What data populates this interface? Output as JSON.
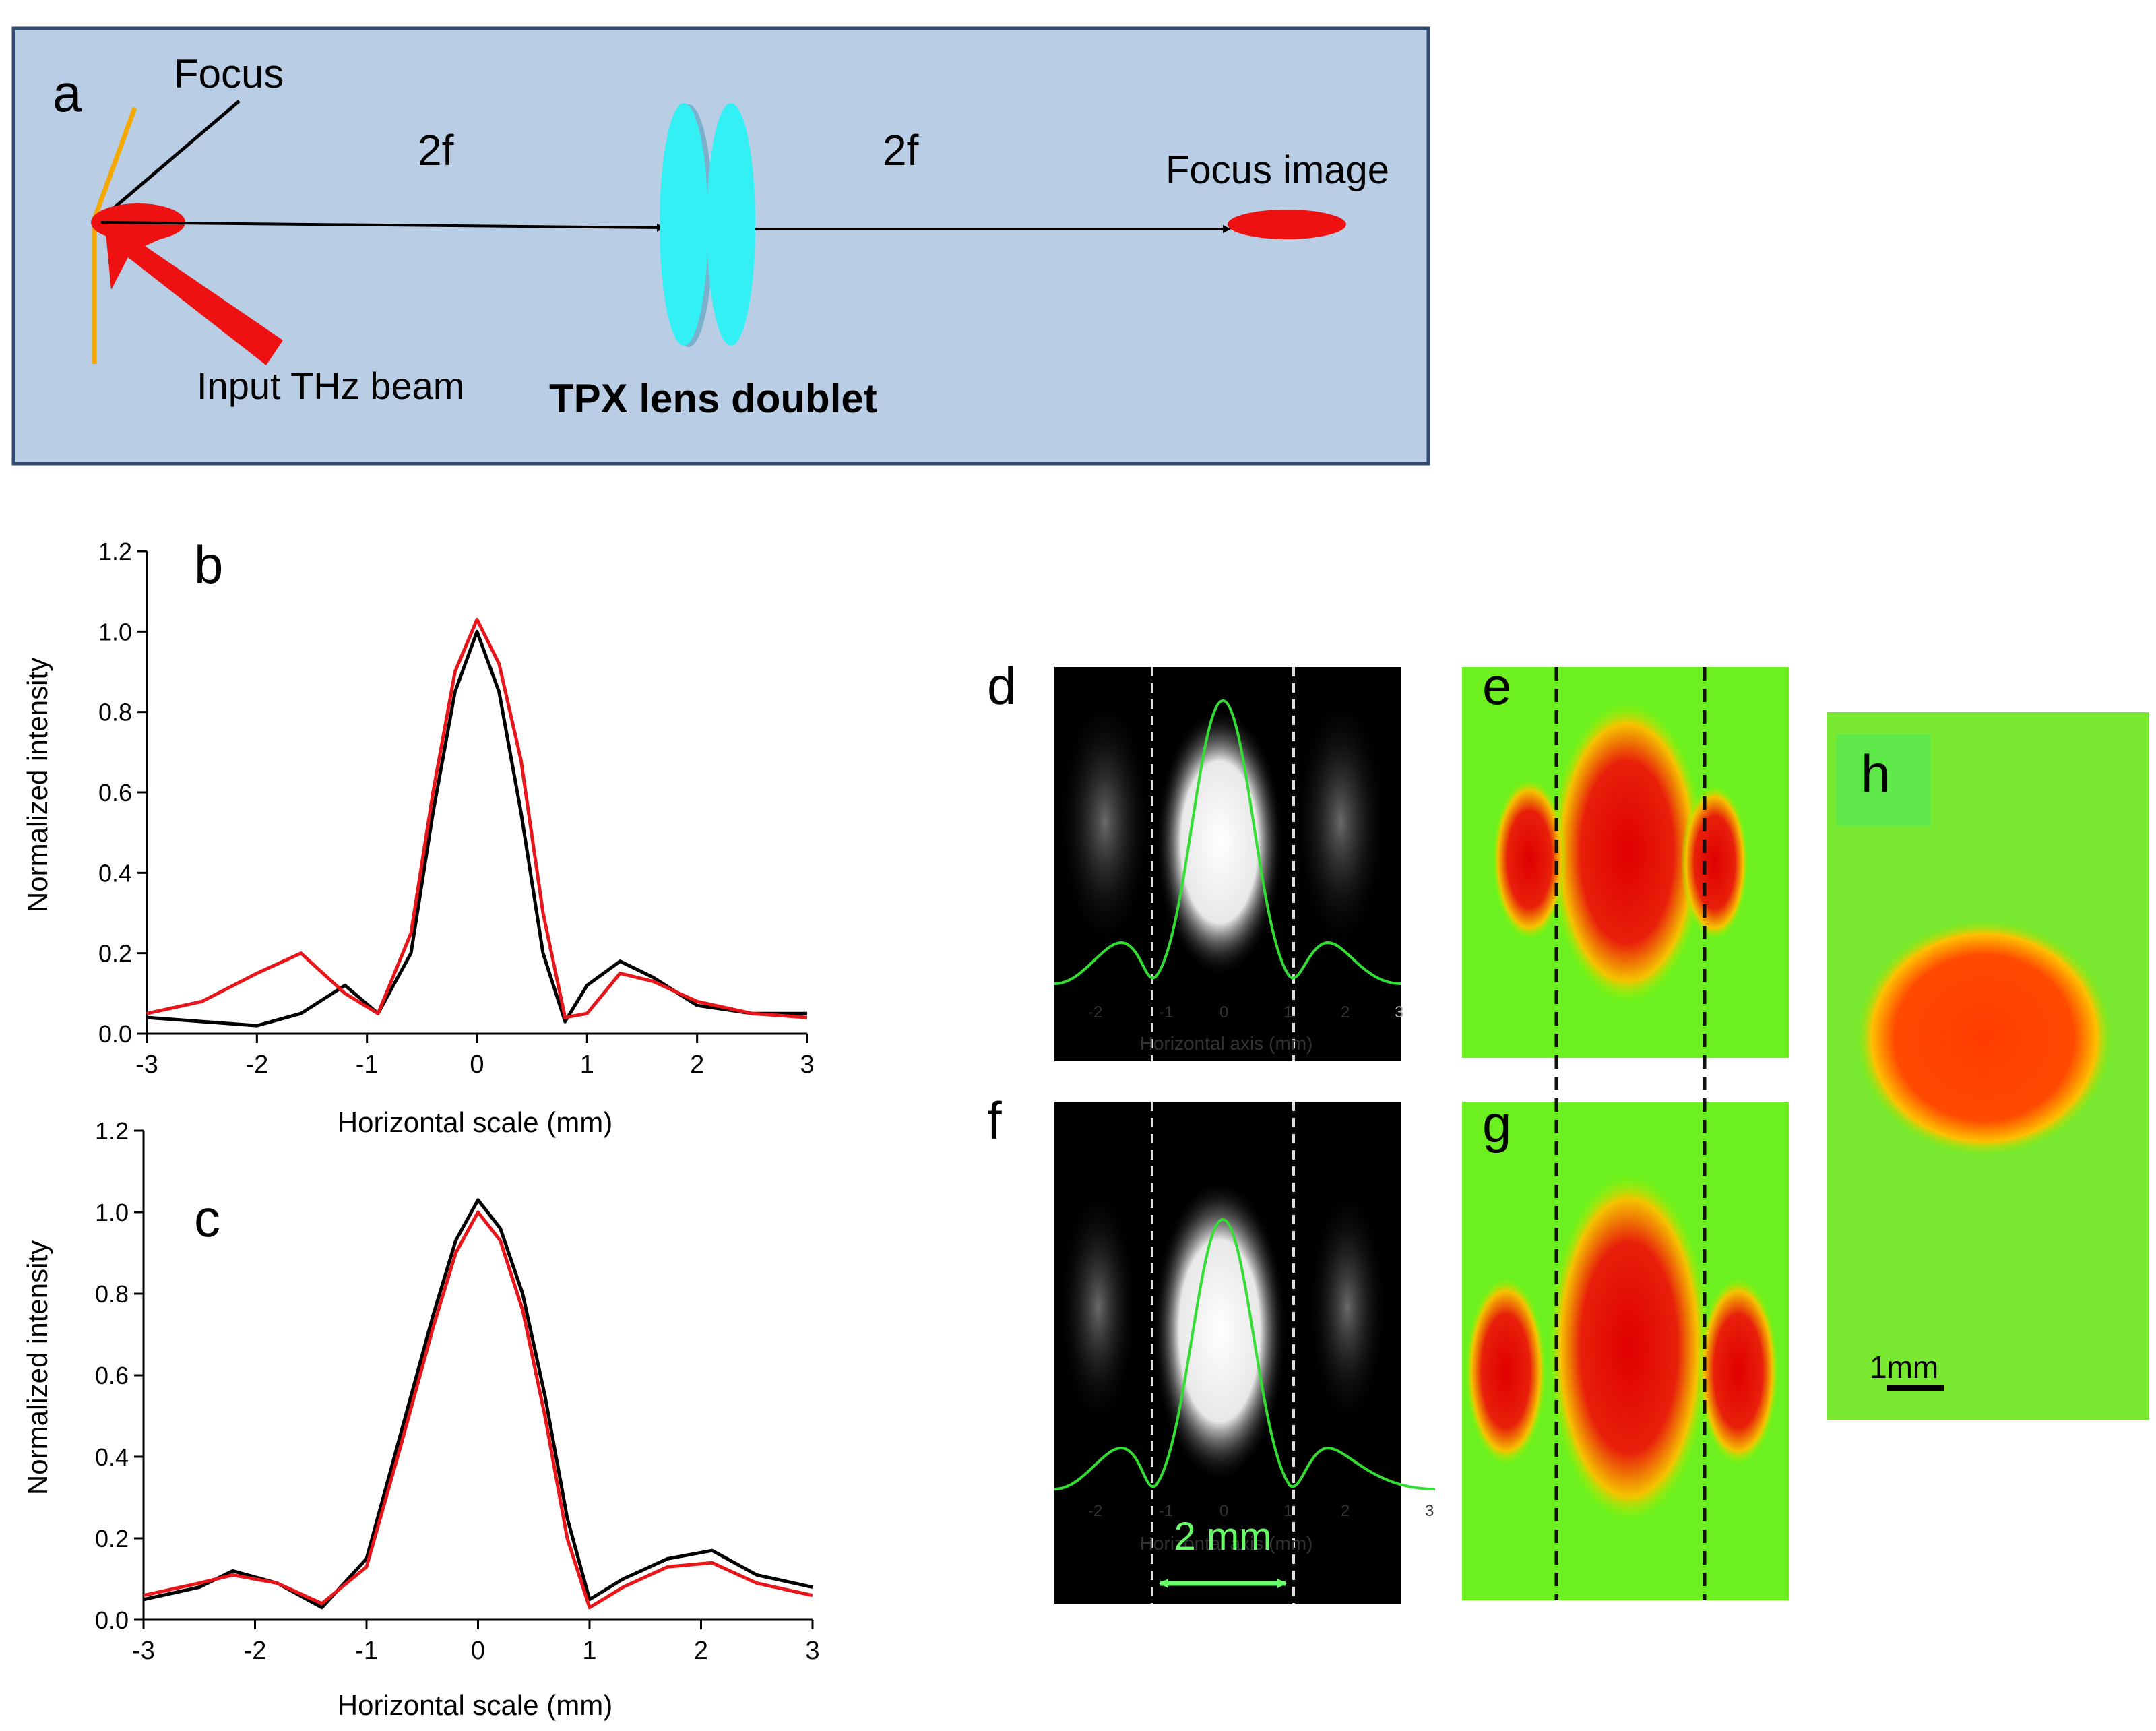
{
  "panel_a": {
    "label": "a",
    "focus": "Focus",
    "dist1": "2f",
    "dist2": "2f",
    "focus_image": "Focus image",
    "input_beam": "Input THz beam",
    "lens": "TPX lens doublet"
  },
  "chart_data": [
    {
      "panel": "b",
      "type": "line",
      "title": "",
      "xlabel": "Horizontal scale (mm)",
      "ylabel": "Normalized intensity",
      "xlim": [
        -3,
        3
      ],
      "ylim": [
        0,
        1.2
      ],
      "xticks": [
        -3,
        -2,
        -1,
        0,
        1,
        2,
        3
      ],
      "yticks": [
        0.0,
        0.2,
        0.4,
        0.6,
        0.8,
        1.0,
        1.2
      ],
      "series": [
        {
          "name": "black",
          "color": "#000000",
          "x": [
            -3,
            -2.5,
            -2,
            -1.6,
            -1.2,
            -0.9,
            -0.6,
            -0.4,
            -0.2,
            0,
            0.2,
            0.4,
            0.6,
            0.8,
            1.0,
            1.3,
            1.6,
            2.0,
            2.5,
            3
          ],
          "y": [
            0.04,
            0.03,
            0.02,
            0.05,
            0.12,
            0.05,
            0.2,
            0.55,
            0.85,
            1.0,
            0.85,
            0.55,
            0.2,
            0.03,
            0.12,
            0.18,
            0.14,
            0.07,
            0.05,
            0.05
          ]
        },
        {
          "name": "red",
          "color": "#e8161b",
          "x": [
            -3,
            -2.5,
            -2,
            -1.6,
            -1.2,
            -0.9,
            -0.6,
            -0.4,
            -0.2,
            0,
            0.2,
            0.4,
            0.6,
            0.8,
            1.0,
            1.3,
            1.6,
            2.0,
            2.5,
            3
          ],
          "y": [
            0.05,
            0.08,
            0.15,
            0.2,
            0.1,
            0.05,
            0.25,
            0.6,
            0.9,
            1.03,
            0.92,
            0.68,
            0.3,
            0.04,
            0.05,
            0.15,
            0.13,
            0.08,
            0.05,
            0.04
          ]
        }
      ]
    },
    {
      "panel": "c",
      "type": "line",
      "title": "",
      "xlabel": "Horizontal scale (mm)",
      "ylabel": "Normalized intensity",
      "xlim": [
        -3,
        3
      ],
      "ylim": [
        0,
        1.2
      ],
      "xticks": [
        -3,
        -2,
        -1,
        0,
        1,
        2,
        3
      ],
      "yticks": [
        0.0,
        0.2,
        0.4,
        0.6,
        0.8,
        1.0,
        1.2
      ],
      "series": [
        {
          "name": "black",
          "color": "#000000",
          "x": [
            -3,
            -2.5,
            -2.2,
            -1.8,
            -1.4,
            -1.0,
            -0.7,
            -0.4,
            -0.2,
            0,
            0.2,
            0.4,
            0.6,
            0.8,
            1.0,
            1.3,
            1.7,
            2.1,
            2.5,
            3
          ],
          "y": [
            0.05,
            0.08,
            0.12,
            0.09,
            0.03,
            0.15,
            0.45,
            0.75,
            0.93,
            1.03,
            0.96,
            0.8,
            0.55,
            0.25,
            0.05,
            0.1,
            0.15,
            0.17,
            0.11,
            0.08
          ]
        },
        {
          "name": "red",
          "color": "#e8161b",
          "x": [
            -3,
            -2.5,
            -2.2,
            -1.8,
            -1.4,
            -1.0,
            -0.7,
            -0.4,
            -0.2,
            0,
            0.2,
            0.4,
            0.6,
            0.8,
            1.0,
            1.3,
            1.7,
            2.1,
            2.5,
            3
          ],
          "y": [
            0.06,
            0.09,
            0.11,
            0.09,
            0.04,
            0.13,
            0.42,
            0.72,
            0.9,
            1.0,
            0.93,
            0.76,
            0.5,
            0.2,
            0.03,
            0.08,
            0.13,
            0.14,
            0.09,
            0.06
          ]
        }
      ]
    }
  ],
  "panel_d": {
    "label": "d",
    "xlabel": "Horizontal axis (mm)",
    "ticks": [
      "-2",
      "-1",
      "0",
      "1",
      "2",
      "3"
    ]
  },
  "panel_e": {
    "label": "e"
  },
  "panel_f": {
    "label": "f",
    "xlabel": "Horizontal axis (mm)",
    "ticks": [
      "-2",
      "-1",
      "0",
      "1",
      "2",
      "3"
    ],
    "scale": "2 mm"
  },
  "panel_g": {
    "label": "g"
  },
  "panel_h": {
    "label": "h",
    "scale": "1mm"
  }
}
